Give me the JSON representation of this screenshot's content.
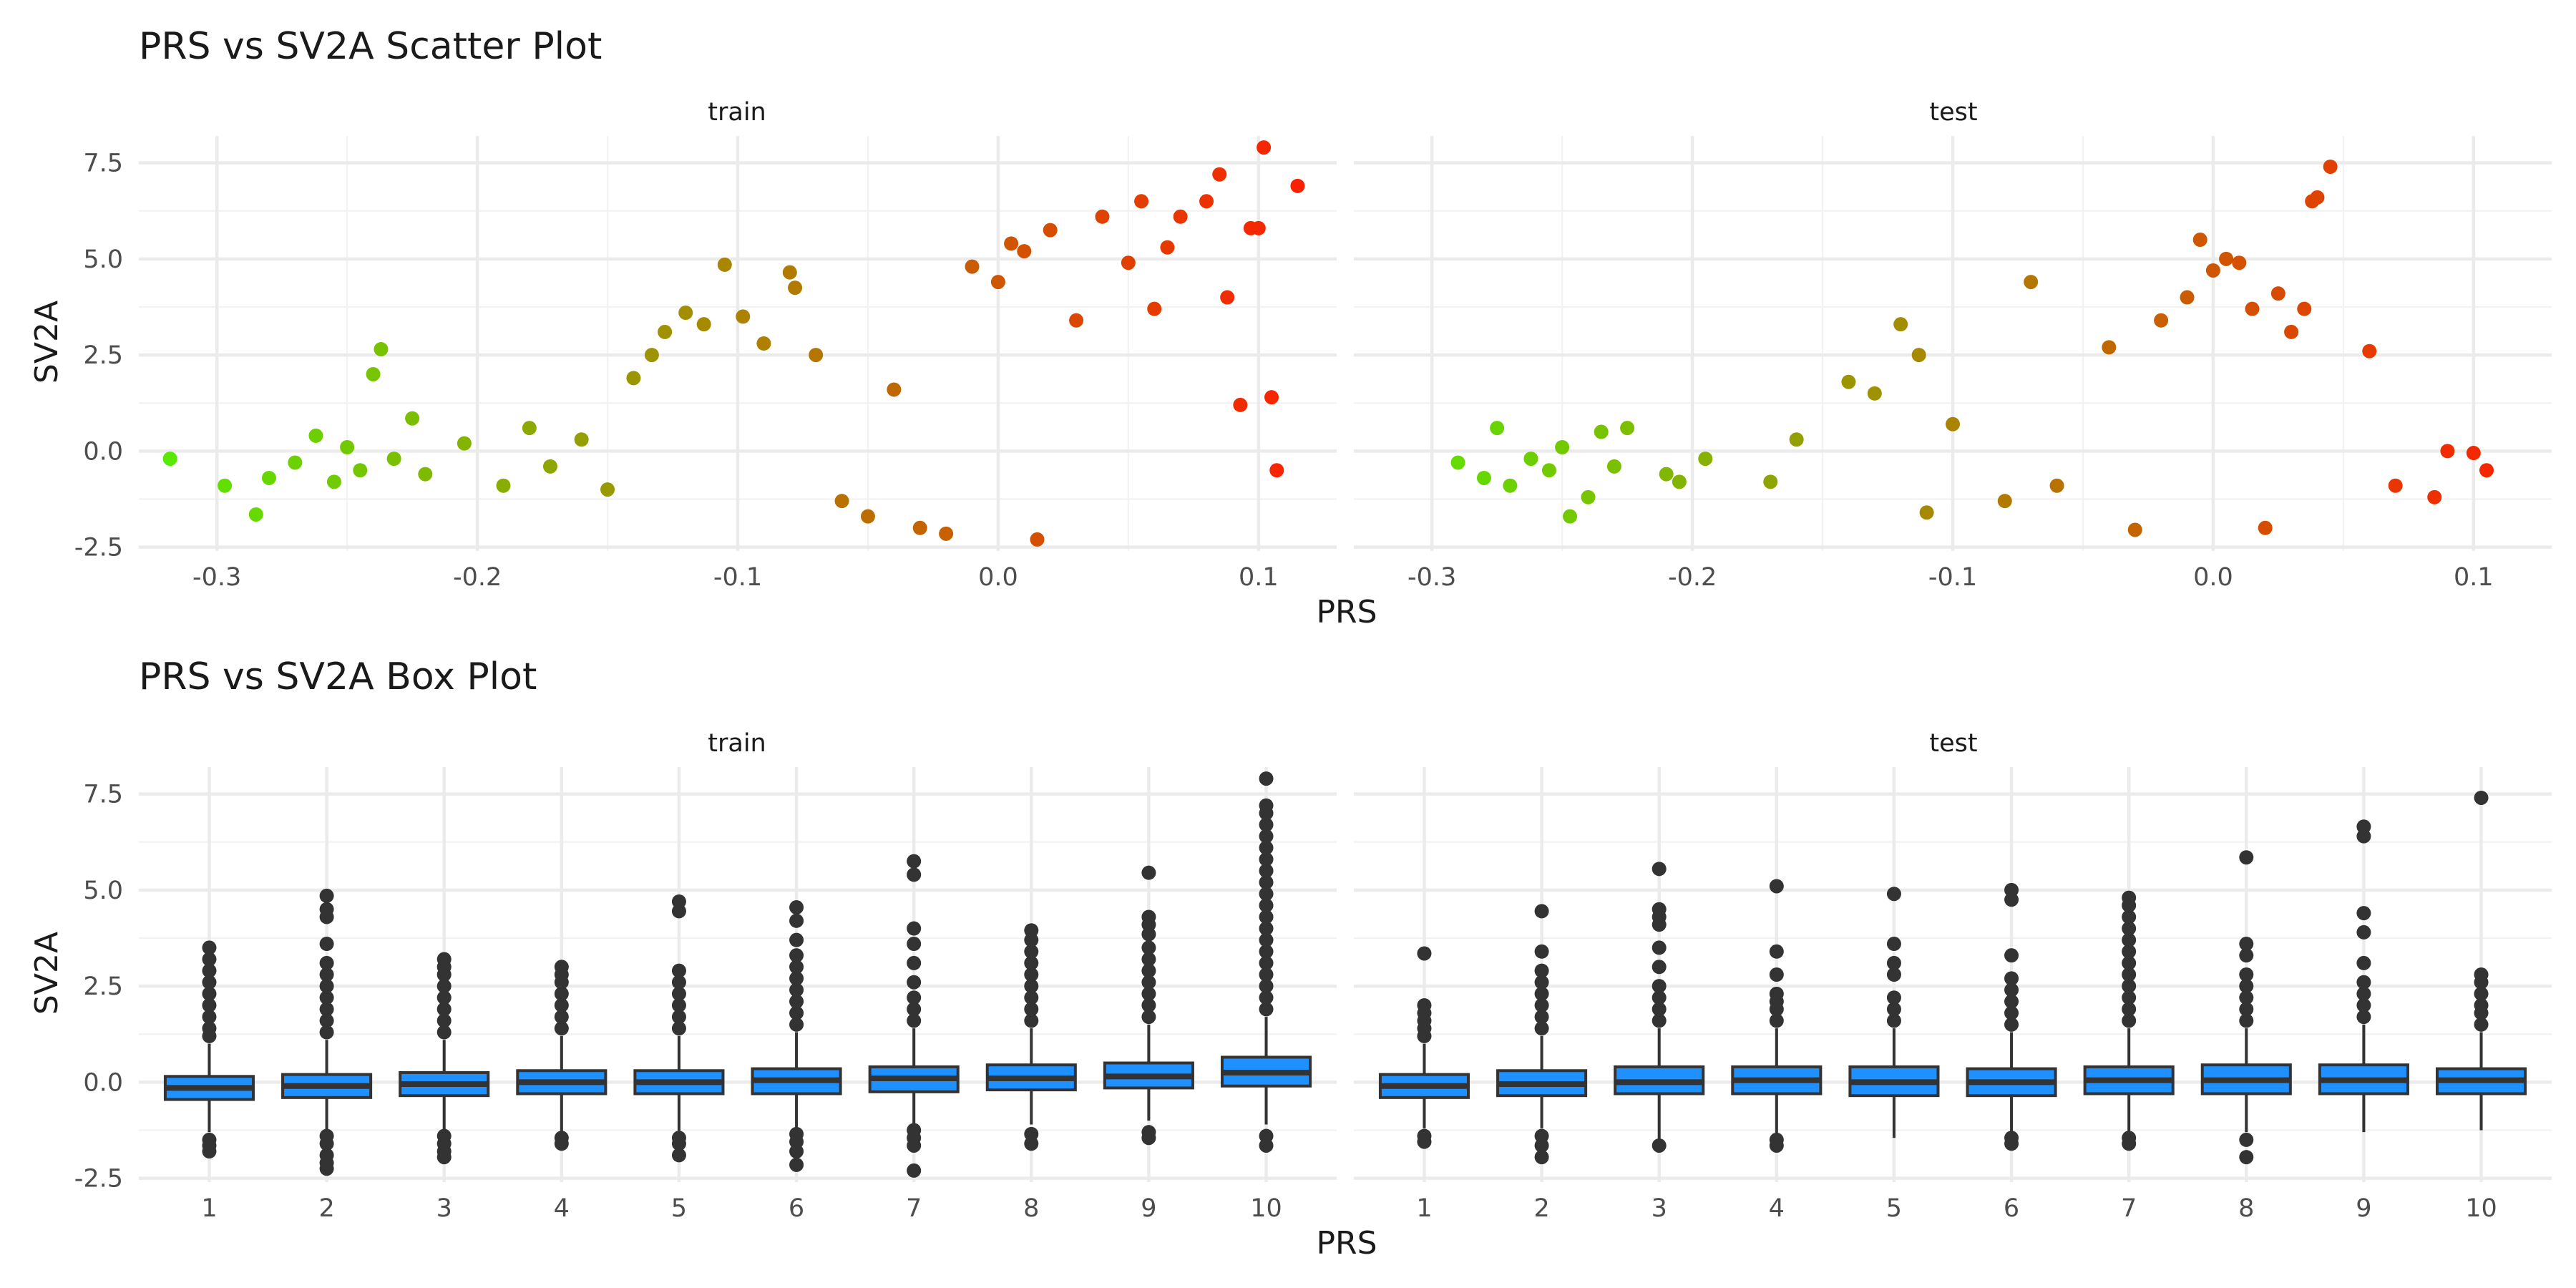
{
  "chart_data": [
    {
      "type": "scatter",
      "title": "PRS vs SV2A Scatter Plot",
      "xlabel": "PRS",
      "ylabel": "SV2A",
      "color_scale": {
        "low": "#55ee00",
        "high": "#ff1a00",
        "mapped_to": "PRS"
      },
      "xlim": [
        -0.33,
        0.13
      ],
      "ylim": [
        -2.6,
        8.2
      ],
      "x_ticks": [
        -0.3,
        -0.2,
        -0.1,
        0.0,
        0.1
      ],
      "x_tick_labels": [
        "-0.3",
        "-0.2",
        "-0.1",
        "0.0",
        "0.1"
      ],
      "y_ticks": [
        -2.5,
        0.0,
        2.5,
        5.0,
        7.5
      ],
      "y_tick_labels": [
        "-2.5",
        "0.0",
        "2.5",
        "5.0",
        "7.5"
      ],
      "grid": true,
      "facets": [
        {
          "label": "train",
          "points": [
            [
              -0.318,
              -0.2
            ],
            [
              -0.297,
              -0.9
            ],
            [
              -0.285,
              -1.65
            ],
            [
              -0.28,
              -0.7
            ],
            [
              -0.27,
              -0.3
            ],
            [
              -0.262,
              0.4
            ],
            [
              -0.255,
              -0.8
            ],
            [
              -0.25,
              0.1
            ],
            [
              -0.245,
              -0.5
            ],
            [
              -0.24,
              2.0
            ],
            [
              -0.237,
              2.65
            ],
            [
              -0.232,
              -0.2
            ],
            [
              -0.225,
              0.85
            ],
            [
              -0.22,
              -0.6
            ],
            [
              -0.205,
              0.2
            ],
            [
              -0.19,
              -0.9
            ],
            [
              -0.18,
              0.6
            ],
            [
              -0.172,
              -0.4
            ],
            [
              -0.16,
              0.3
            ],
            [
              -0.15,
              -1.0
            ],
            [
              -0.14,
              1.9
            ],
            [
              -0.133,
              2.5
            ],
            [
              -0.128,
              3.1
            ],
            [
              -0.12,
              3.6
            ],
            [
              -0.113,
              3.3
            ],
            [
              -0.105,
              4.85
            ],
            [
              -0.098,
              3.5
            ],
            [
              -0.09,
              2.8
            ],
            [
              -0.08,
              4.65
            ],
            [
              -0.078,
              4.25
            ],
            [
              -0.07,
              2.5
            ],
            [
              -0.06,
              -1.3
            ],
            [
              -0.05,
              -1.7
            ],
            [
              -0.04,
              1.6
            ],
            [
              -0.03,
              -2.0
            ],
            [
              -0.02,
              -2.15
            ],
            [
              -0.01,
              4.8
            ],
            [
              0.0,
              4.4
            ],
            [
              0.005,
              5.4
            ],
            [
              0.01,
              5.2
            ],
            [
              0.015,
              -2.3
            ],
            [
              0.02,
              5.75
            ],
            [
              0.03,
              3.4
            ],
            [
              0.04,
              6.1
            ],
            [
              0.05,
              4.9
            ],
            [
              0.055,
              6.5
            ],
            [
              0.06,
              3.7
            ],
            [
              0.065,
              5.3
            ],
            [
              0.07,
              6.1
            ],
            [
              0.08,
              6.5
            ],
            [
              0.085,
              7.2
            ],
            [
              0.088,
              4.0
            ],
            [
              0.093,
              1.2
            ],
            [
              0.097,
              5.8
            ],
            [
              0.1,
              5.8
            ],
            [
              0.102,
              7.9
            ],
            [
              0.105,
              1.4
            ],
            [
              0.107,
              -0.5
            ],
            [
              0.115,
              6.9
            ]
          ]
        },
        {
          "label": "test",
          "points": [
            [
              -0.29,
              -0.3
            ],
            [
              -0.28,
              -0.7
            ],
            [
              -0.275,
              0.6
            ],
            [
              -0.27,
              -0.9
            ],
            [
              -0.262,
              -0.2
            ],
            [
              -0.255,
              -0.5
            ],
            [
              -0.25,
              0.1
            ],
            [
              -0.247,
              -1.7
            ],
            [
              -0.24,
              -1.2
            ],
            [
              -0.235,
              0.5
            ],
            [
              -0.23,
              -0.4
            ],
            [
              -0.225,
              0.6
            ],
            [
              -0.21,
              -0.6
            ],
            [
              -0.205,
              -0.8
            ],
            [
              -0.195,
              -0.2
            ],
            [
              -0.17,
              -0.8
            ],
            [
              -0.16,
              0.3
            ],
            [
              -0.14,
              1.8
            ],
            [
              -0.13,
              1.5
            ],
            [
              -0.12,
              3.3
            ],
            [
              -0.113,
              2.5
            ],
            [
              -0.11,
              -1.6
            ],
            [
              -0.1,
              0.7
            ],
            [
              -0.08,
              -1.3
            ],
            [
              -0.07,
              4.4
            ],
            [
              -0.06,
              -0.9
            ],
            [
              -0.04,
              2.7
            ],
            [
              -0.03,
              -2.05
            ],
            [
              -0.02,
              3.4
            ],
            [
              -0.01,
              4.0
            ],
            [
              -0.005,
              5.5
            ],
            [
              0.0,
              4.7
            ],
            [
              0.005,
              5.0
            ],
            [
              0.01,
              4.9
            ],
            [
              0.015,
              3.7
            ],
            [
              0.02,
              -2.0
            ],
            [
              0.025,
              4.1
            ],
            [
              0.03,
              3.1
            ],
            [
              0.035,
              3.7
            ],
            [
              0.038,
              6.5
            ],
            [
              0.04,
              6.6
            ],
            [
              0.045,
              7.4
            ],
            [
              0.06,
              2.6
            ],
            [
              0.07,
              -0.9
            ],
            [
              0.085,
              -1.2
            ],
            [
              0.09,
              0.0
            ],
            [
              0.1,
              -0.05
            ],
            [
              0.105,
              -0.5
            ]
          ]
        }
      ]
    },
    {
      "type": "box",
      "title": "PRS vs SV2A Box Plot",
      "xlabel": "PRS",
      "ylabel": "SV2A",
      "categories": [
        "1",
        "2",
        "3",
        "4",
        "5",
        "6",
        "7",
        "8",
        "9",
        "10"
      ],
      "ylim": [
        -2.6,
        8.2
      ],
      "y_ticks": [
        -2.5,
        0.0,
        2.5,
        5.0,
        7.5
      ],
      "y_tick_labels": [
        "-2.5",
        "0.0",
        "2.5",
        "5.0",
        "7.5"
      ],
      "fill_color": "#1e90ff",
      "edge_color": "#333333",
      "grid": true,
      "facets": [
        {
          "label": "train",
          "boxes": [
            {
              "whisker_low": -1.3,
              "q1": -0.45,
              "median": -0.15,
              "q3": 0.15,
              "whisker_high": 1.0,
              "outliers": [
                -1.5,
                -1.65,
                -1.8,
                1.2,
                1.4,
                1.7,
                2.0,
                2.3,
                2.6,
                2.9,
                3.2,
                3.5
              ]
            },
            {
              "whisker_low": -1.3,
              "q1": -0.4,
              "median": -0.1,
              "q3": 0.2,
              "whisker_high": 1.1,
              "outliers": [
                -1.4,
                -1.6,
                -1.9,
                -2.1,
                -2.25,
                1.3,
                1.6,
                1.9,
                2.2,
                2.5,
                2.8,
                3.1,
                3.6,
                4.3,
                4.5,
                4.85
              ]
            },
            {
              "whisker_low": -1.3,
              "q1": -0.35,
              "median": -0.05,
              "q3": 0.25,
              "whisker_high": 1.1,
              "outliers": [
                -1.4,
                -1.6,
                -1.8,
                -1.95,
                1.3,
                1.6,
                1.9,
                2.2,
                2.5,
                2.8,
                3.0,
                3.2
              ]
            },
            {
              "whisker_low": -1.3,
              "q1": -0.3,
              "median": 0.0,
              "q3": 0.3,
              "whisker_high": 1.2,
              "outliers": [
                -1.45,
                -1.6,
                1.4,
                1.7,
                2.0,
                2.3,
                2.6,
                2.8,
                3.0
              ]
            },
            {
              "whisker_low": -1.3,
              "q1": -0.3,
              "median": 0.0,
              "q3": 0.3,
              "whisker_high": 1.2,
              "outliers": [
                -1.45,
                -1.6,
                -1.9,
                1.4,
                1.7,
                2.0,
                2.3,
                2.6,
                2.9,
                4.45,
                4.7
              ]
            },
            {
              "whisker_low": -1.2,
              "q1": -0.3,
              "median": 0.05,
              "q3": 0.35,
              "whisker_high": 1.3,
              "outliers": [
                -1.35,
                -1.55,
                -1.8,
                -2.15,
                1.5,
                1.8,
                2.1,
                2.4,
                2.7,
                3.0,
                3.3,
                3.7,
                4.2,
                4.55
              ]
            },
            {
              "whisker_low": -1.1,
              "q1": -0.25,
              "median": 0.1,
              "q3": 0.4,
              "whisker_high": 1.4,
              "outliers": [
                -1.25,
                -1.45,
                -1.65,
                -2.3,
                1.6,
                1.9,
                2.2,
                2.6,
                3.1,
                3.6,
                4.0,
                5.4,
                5.75
              ]
            },
            {
              "whisker_low": -1.1,
              "q1": -0.2,
              "median": 0.1,
              "q3": 0.45,
              "whisker_high": 1.4,
              "outliers": [
                -1.35,
                -1.6,
                1.6,
                1.9,
                2.2,
                2.5,
                2.8,
                3.1,
                3.4,
                3.7,
                3.95
              ]
            },
            {
              "whisker_low": -1.0,
              "q1": -0.15,
              "median": 0.15,
              "q3": 0.5,
              "whisker_high": 1.5,
              "outliers": [
                -1.3,
                -1.45,
                1.7,
                2.0,
                2.3,
                2.6,
                2.9,
                3.2,
                3.5,
                3.85,
                4.1,
                4.3,
                5.45
              ]
            },
            {
              "whisker_low": -1.1,
              "q1": -0.1,
              "median": 0.25,
              "q3": 0.65,
              "whisker_high": 1.7,
              "outliers": [
                -1.4,
                -1.65,
                1.9,
                2.2,
                2.5,
                2.8,
                3.1,
                3.4,
                3.7,
                4.0,
                4.3,
                4.6,
                4.9,
                5.2,
                5.5,
                5.8,
                6.1,
                6.4,
                6.7,
                7.0,
                7.2,
                7.9
              ]
            }
          ]
        },
        {
          "label": "test",
          "boxes": [
            {
              "whisker_low": -1.2,
              "q1": -0.4,
              "median": -0.1,
              "q3": 0.2,
              "whisker_high": 1.0,
              "outliers": [
                -1.4,
                -1.55,
                1.2,
                1.4,
                1.6,
                1.8,
                2.0,
                3.35
              ]
            },
            {
              "whisker_low": -1.2,
              "q1": -0.35,
              "median": -0.05,
              "q3": 0.3,
              "whisker_high": 1.2,
              "outliers": [
                -1.4,
                -1.65,
                -1.95,
                1.4,
                1.7,
                2.0,
                2.3,
                2.6,
                2.9,
                3.4,
                4.45
              ]
            },
            {
              "whisker_low": -1.5,
              "q1": -0.3,
              "median": 0.0,
              "q3": 0.4,
              "whisker_high": 1.4,
              "outliers": [
                -1.65,
                1.6,
                1.9,
                2.2,
                2.5,
                3.0,
                3.5,
                4.1,
                4.3,
                4.5,
                5.55
              ]
            },
            {
              "whisker_low": -1.4,
              "q1": -0.3,
              "median": 0.05,
              "q3": 0.4,
              "whisker_high": 1.4,
              "outliers": [
                -1.5,
                -1.65,
                1.6,
                1.9,
                2.1,
                2.3,
                2.8,
                3.4,
                5.1
              ]
            },
            {
              "whisker_low": -1.45,
              "q1": -0.35,
              "median": 0.0,
              "q3": 0.4,
              "whisker_high": 1.4,
              "outliers": [
                1.6,
                1.9,
                2.2,
                2.8,
                3.1,
                3.6,
                4.9
              ]
            },
            {
              "whisker_low": -1.3,
              "q1": -0.35,
              "median": 0.0,
              "q3": 0.35,
              "whisker_high": 1.3,
              "outliers": [
                -1.45,
                -1.6,
                1.5,
                1.8,
                2.1,
                2.4,
                2.7,
                3.3,
                4.75,
                5.0
              ]
            },
            {
              "whisker_low": -1.3,
              "q1": -0.3,
              "median": 0.05,
              "q3": 0.4,
              "whisker_high": 1.4,
              "outliers": [
                -1.45,
                -1.6,
                1.6,
                1.9,
                2.2,
                2.5,
                2.8,
                3.1,
                3.4,
                3.7,
                4.0,
                4.3,
                4.6,
                4.8
              ]
            },
            {
              "whisker_low": -1.3,
              "q1": -0.3,
              "median": 0.05,
              "q3": 0.45,
              "whisker_high": 1.4,
              "outliers": [
                -1.5,
                -1.95,
                1.6,
                1.9,
                2.2,
                2.5,
                2.8,
                3.3,
                3.6,
                5.85
              ]
            },
            {
              "whisker_low": -1.3,
              "q1": -0.3,
              "median": 0.05,
              "q3": 0.45,
              "whisker_high": 1.5,
              "outliers": [
                1.7,
                2.0,
                2.3,
                2.6,
                3.1,
                3.9,
                4.4,
                6.4,
                6.65
              ]
            },
            {
              "whisker_low": -1.25,
              "q1": -0.3,
              "median": 0.05,
              "q3": 0.35,
              "whisker_high": 1.3,
              "outliers": [
                1.5,
                1.8,
                2.0,
                2.3,
                2.6,
                2.8,
                7.4
              ]
            }
          ]
        }
      ]
    }
  ]
}
